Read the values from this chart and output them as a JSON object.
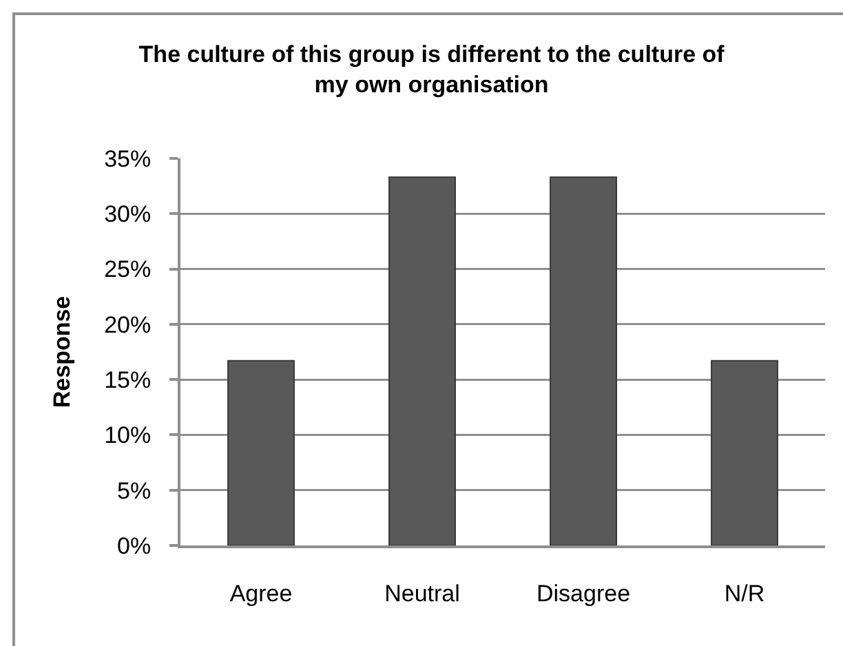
{
  "chart_data": {
    "type": "bar",
    "title": "The culture of this group is different to the culture of my own organisation",
    "ylabel": "Response",
    "categories": [
      "Agree",
      "Neutral",
      "Disagree",
      "N/R"
    ],
    "values": [
      16.7,
      33.3,
      33.3,
      16.7
    ],
    "color": "#595959",
    "ylim": [
      0,
      35
    ],
    "yticks": [
      {
        "value": 0,
        "label": "0%"
      },
      {
        "value": 5,
        "label": "5%"
      },
      {
        "value": 10,
        "label": "10%"
      },
      {
        "value": 15,
        "label": "15%"
      },
      {
        "value": 20,
        "label": "20%"
      },
      {
        "value": 25,
        "label": "25%"
      },
      {
        "value": 30,
        "label": "30%"
      },
      {
        "value": 35,
        "label": "35%"
      }
    ],
    "grid": "y"
  }
}
